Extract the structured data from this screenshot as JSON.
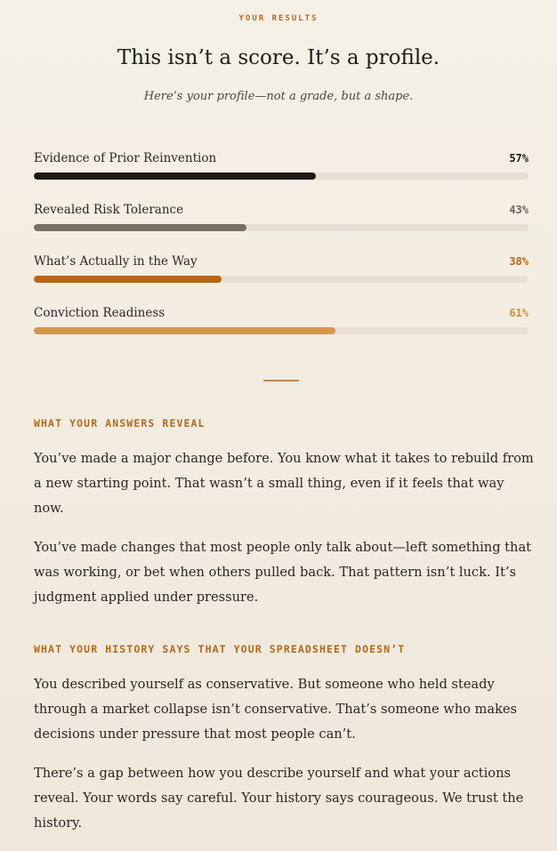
{
  "header": {
    "eyebrow": "YOUR RESULTS",
    "title": "This isn’t a score. It’s a profile.",
    "subtitle": "Here’s your profile—not a grade, but a shape."
  },
  "metrics": [
    {
      "label": "Evidence of Prior Reinvention",
      "value": 57,
      "display": "57%",
      "color": "#1e1a16",
      "value_color": "#1e1a16"
    },
    {
      "label": "Revealed Risk Tolerance",
      "value": 43,
      "display": "43%",
      "color": "#7a6e65",
      "value_color": "#6f655d"
    },
    {
      "label": "What’s Actually in the Way",
      "value": 38,
      "display": "38%",
      "color": "#b96514",
      "value_color": "#b96514"
    },
    {
      "label": "Conviction Readiness",
      "value": 61,
      "display": "61%",
      "color": "#d7964f",
      "value_color": "#d48e46"
    }
  ],
  "sections": [
    {
      "heading": "WHAT YOUR ANSWERS REVEAL",
      "paragraphs": [
        "You’ve made a major change before. You know what it takes to rebuild from a new starting point. That wasn’t a small thing, even if it feels that way now.",
        "You’ve made changes that most people only talk about—left something that was working, or bet when others pulled back. That pattern isn’t luck. It’s judgment applied under pressure."
      ]
    },
    {
      "heading": "WHAT YOUR HISTORY SAYS THAT YOUR SPREADSHEET DOESN’T",
      "paragraphs": [
        "You described yourself as conservative. But someone who held steady through a market collapse isn’t conservative. That’s someone who makes decisions under pressure that most people can’t.",
        "There’s a gap between how you describe yourself and what your actions reveal. Your words say careful. Your history says courageous. We trust the history."
      ]
    }
  ]
}
